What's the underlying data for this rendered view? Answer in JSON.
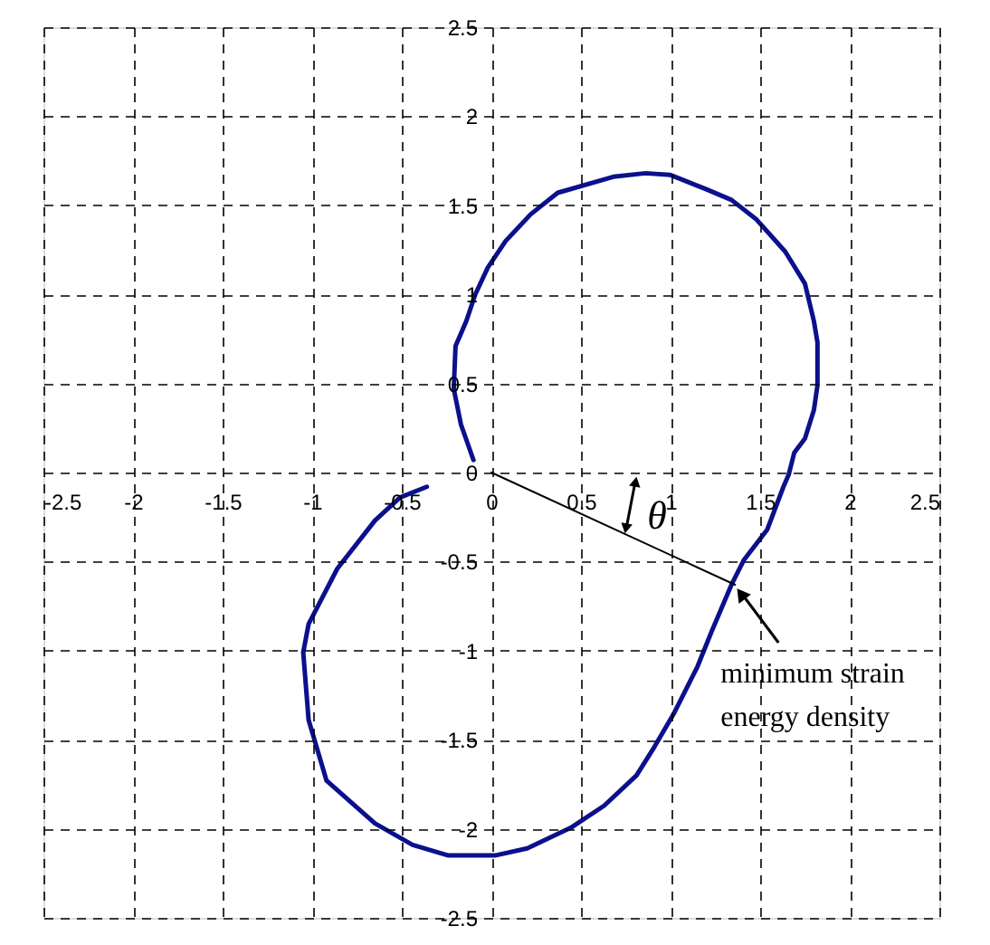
{
  "chart_data": {
    "type": "line",
    "xlim": [
      -2.5,
      2.5
    ],
    "ylim": [
      -2.5,
      2.5
    ],
    "xticks": [
      -2.5,
      -2,
      -1.5,
      -1,
      -0.5,
      0,
      0.5,
      1,
      1.5,
      2,
      2.5
    ],
    "yticks": [
      -2.5,
      -2,
      -1.5,
      -1,
      -0.5,
      0,
      0.5,
      1,
      1.5,
      2,
      2.5
    ],
    "grid": true,
    "series": [
      {
        "color": "#0b108c",
        "x": [
          -0.1,
          -0.17,
          -0.21,
          -0.2,
          -0.14,
          -0.09,
          -0.02,
          0.08,
          0.22,
          0.37,
          0.68,
          0.86,
          1.0,
          1.2,
          1.34,
          1.48,
          1.64,
          1.75,
          1.8,
          1.82,
          1.82,
          1.8,
          1.75,
          1.69,
          1.66,
          1.63,
          1.54,
          1.41,
          1.34,
          1.23,
          1.15,
          1.02,
          0.91,
          0.81,
          0.63,
          0.45,
          0.2,
          0.02,
          -0.24,
          -0.44,
          -0.65,
          -0.92,
          -1.02,
          -1.05,
          -1.02,
          -0.86,
          -0.65,
          -0.51,
          -0.36
        ],
        "values": [
          0.07,
          0.27,
          0.47,
          0.71,
          0.85,
          1.0,
          1.15,
          1.3,
          1.45,
          1.57,
          1.66,
          1.68,
          1.67,
          1.59,
          1.53,
          1.42,
          1.24,
          1.06,
          0.85,
          0.73,
          0.49,
          0.35,
          0.19,
          0.11,
          -0.01,
          -0.08,
          -0.32,
          -0.49,
          -0.63,
          -0.89,
          -1.09,
          -1.35,
          -1.54,
          -1.7,
          -1.87,
          -1.99,
          -2.11,
          -2.15,
          -2.15,
          -2.09,
          -1.97,
          -1.73,
          -1.39,
          -1.01,
          -0.85,
          -0.54,
          -0.27,
          -0.14,
          -0.08
        ]
      },
      {
        "color": "#000000",
        "x": [
          0,
          1.36
        ],
        "values": [
          0,
          -0.63
        ]
      }
    ],
    "annotations": [
      {
        "text": "minimum strain energy density",
        "x": 1.36,
        "y": -0.63
      },
      "θ"
    ]
  }
}
